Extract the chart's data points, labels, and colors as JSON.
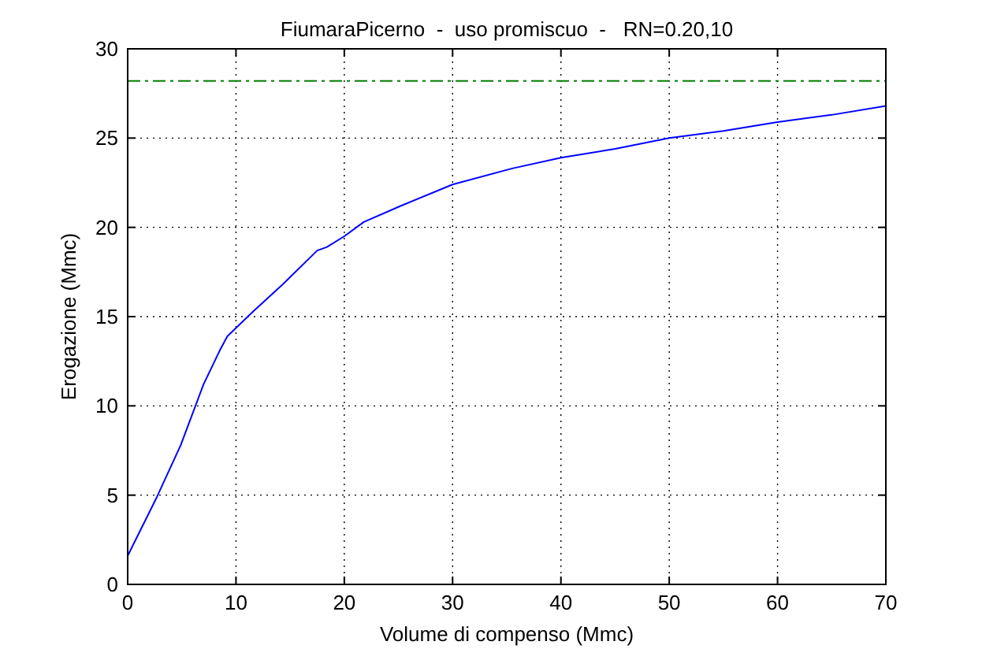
{
  "chart_data": {
    "type": "line",
    "title": "FiumaraPicerno  -  uso promiscuo  -   RN=0.20,10",
    "xlabel": "Volume di compenso (Mmc)",
    "ylabel": "Erogazione (Mmc)",
    "x": [
      0,
      2.7,
      4.9,
      7,
      8.5,
      9.2,
      11.6,
      14.3,
      17.5,
      18.4,
      20,
      21.8,
      25.2,
      30,
      35.5,
      40,
      45,
      50,
      55,
      60,
      65,
      70
    ],
    "series": [
      {
        "color": "#0000ff",
        "values": [
          1.6,
          4.9,
          7.8,
          11.2,
          13.1,
          13.9,
          15.3,
          16.8,
          18.7,
          18.9,
          19.5,
          20.3,
          21.2,
          22.4,
          23.3,
          23.9,
          24.4,
          25,
          25.4,
          25.9,
          26.3,
          26.8
        ]
      }
    ],
    "xlim": [
      0,
      70
    ],
    "xticks": [
      0,
      10,
      20,
      30,
      40,
      50,
      60,
      70
    ],
    "ylim": [
      0,
      30
    ],
    "yticks": [
      0,
      5,
      10,
      15,
      20,
      25,
      30
    ],
    "ref_lines": [
      {
        "axis": "y",
        "value": 28.2,
        "color": "#008000",
        "line_style": "dashdot"
      }
    ],
    "grid": true,
    "line_style": "solid",
    "marker": "none"
  }
}
